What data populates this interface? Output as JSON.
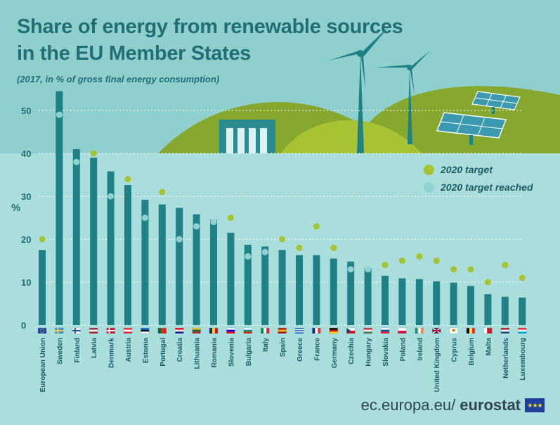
{
  "header": {
    "title_line1": "Share of energy from renewable sources",
    "title_line2": "in the EU Member States",
    "subtitle": "(2017, in % of gross final energy consumption)"
  },
  "footer": {
    "site": "ec.europa.eu/",
    "brand": "eurostat",
    "flag_icon": "eu-flag-icon"
  },
  "colors": {
    "background": "#a9dedd",
    "bar": "#1d8186",
    "target": "#a7c232",
    "reached": "#8fd3d1",
    "title": "#1f6f73",
    "hill": "#86a82f"
  },
  "chart_data": {
    "type": "bar",
    "ylabel": "%",
    "ylim": [
      0,
      55
    ],
    "yticks": [
      0,
      10,
      20,
      30,
      40,
      50
    ],
    "grid": true,
    "legend_placement": "top-right",
    "legend": [
      {
        "label": "2020 target",
        "marker": "target"
      },
      {
        "label": "2020 target reached",
        "marker": "reached"
      }
    ],
    "categories": [
      "European Union",
      "Sweden",
      "Finland",
      "Latvia",
      "Denmark",
      "Austria",
      "Estonia",
      "Portugal",
      "Croatia",
      "Lithuania",
      "Romania",
      "Slovenia",
      "Bulgaria",
      "Italy",
      "Spain",
      "Greece",
      "France",
      "Germany",
      "Czechia",
      "Hungary",
      "Slovakia",
      "Poland",
      "Ireland",
      "United Kingdom",
      "Cyprus",
      "Belgium",
      "Malta",
      "Netherlands",
      "Luxembourg"
    ],
    "series": [
      {
        "name": "share_2017",
        "values": [
          17.5,
          54.5,
          41.0,
          39.0,
          35.8,
          32.6,
          29.2,
          28.1,
          27.3,
          25.8,
          24.5,
          21.5,
          18.7,
          18.3,
          17.5,
          16.3,
          16.3,
          15.5,
          14.8,
          13.3,
          11.5,
          10.9,
          10.7,
          10.2,
          9.9,
          9.1,
          7.2,
          6.6,
          6.4
        ]
      },
      {
        "name": "target_2020",
        "values": [
          20,
          49,
          38,
          40,
          30,
          34,
          25,
          31,
          20,
          23,
          24,
          25,
          16,
          17,
          20,
          18,
          23,
          18,
          13,
          13,
          14,
          15,
          16,
          15,
          13,
          13,
          10,
          14,
          11
        ]
      }
    ],
    "target_reached": [
      false,
      true,
      true,
      false,
      true,
      false,
      true,
      false,
      true,
      true,
      true,
      false,
      true,
      true,
      false,
      false,
      false,
      false,
      true,
      true,
      false,
      false,
      false,
      false,
      false,
      false,
      false,
      false,
      false
    ],
    "flags": [
      {
        "type": "eu"
      },
      {
        "type": "nordic",
        "bg": "#3c8fd6",
        "cross": "#ffd23f"
      },
      {
        "type": "nordic",
        "bg": "#ffffff",
        "cross": "#1a4fa0"
      },
      {
        "type": "h3",
        "colors": [
          "#9e2a35",
          "#ffffff",
          "#9e2a35"
        ]
      },
      {
        "type": "nordic",
        "bg": "#c8102e",
        "cross": "#ffffff"
      },
      {
        "type": "h3",
        "colors": [
          "#ed2939",
          "#ffffff",
          "#ed2939"
        ]
      },
      {
        "type": "h3",
        "colors": [
          "#0072ce",
          "#000000",
          "#ffffff"
        ]
      },
      {
        "type": "v2",
        "colors": [
          "#046a38",
          "#da291c"
        ]
      },
      {
        "type": "h3",
        "colors": [
          "#ff0000",
          "#ffffff",
          "#171796"
        ]
      },
      {
        "type": "h3",
        "colors": [
          "#fdb913",
          "#006a44",
          "#c1272d"
        ]
      },
      {
        "type": "v3",
        "colors": [
          "#002b7f",
          "#fcd116",
          "#ce1126"
        ]
      },
      {
        "type": "h3",
        "colors": [
          "#ffffff",
          "#0000ff",
          "#ff0000"
        ]
      },
      {
        "type": "h3",
        "colors": [
          "#ffffff",
          "#00966e",
          "#d62612"
        ]
      },
      {
        "type": "v3",
        "colors": [
          "#009246",
          "#ffffff",
          "#ce2b37"
        ]
      },
      {
        "type": "h3",
        "colors": [
          "#aa151b",
          "#f1bf00",
          "#aa151b"
        ]
      },
      {
        "type": "stripes",
        "colors": [
          "#0d5eaf",
          "#ffffff"
        ]
      },
      {
        "type": "v3",
        "colors": [
          "#002395",
          "#ffffff",
          "#ed2939"
        ]
      },
      {
        "type": "h3",
        "colors": [
          "#000000",
          "#dd0000",
          "#ffce00"
        ]
      },
      {
        "type": "h2tri",
        "colors": [
          "#ffffff",
          "#d7141a",
          "#11457e"
        ]
      },
      {
        "type": "h3",
        "colors": [
          "#ce2939",
          "#ffffff",
          "#477050"
        ]
      },
      {
        "type": "h3",
        "colors": [
          "#ffffff",
          "#0b4ea2",
          "#ee1c25"
        ]
      },
      {
        "type": "h2",
        "colors": [
          "#ffffff",
          "#dc143c"
        ]
      },
      {
        "type": "v3",
        "colors": [
          "#169b62",
          "#ffffff",
          "#ff883e"
        ]
      },
      {
        "type": "uk"
      },
      {
        "type": "plain",
        "colors": [
          "#ffffff",
          "#d57800"
        ]
      },
      {
        "type": "v3",
        "colors": [
          "#000000",
          "#fae042",
          "#ed2939"
        ]
      },
      {
        "type": "v2",
        "colors": [
          "#ffffff",
          "#cf142b"
        ]
      },
      {
        "type": "h3",
        "colors": [
          "#ae1c28",
          "#ffffff",
          "#21468b"
        ]
      },
      {
        "type": "h3",
        "colors": [
          "#ed2939",
          "#ffffff",
          "#00a1de"
        ]
      }
    ]
  }
}
